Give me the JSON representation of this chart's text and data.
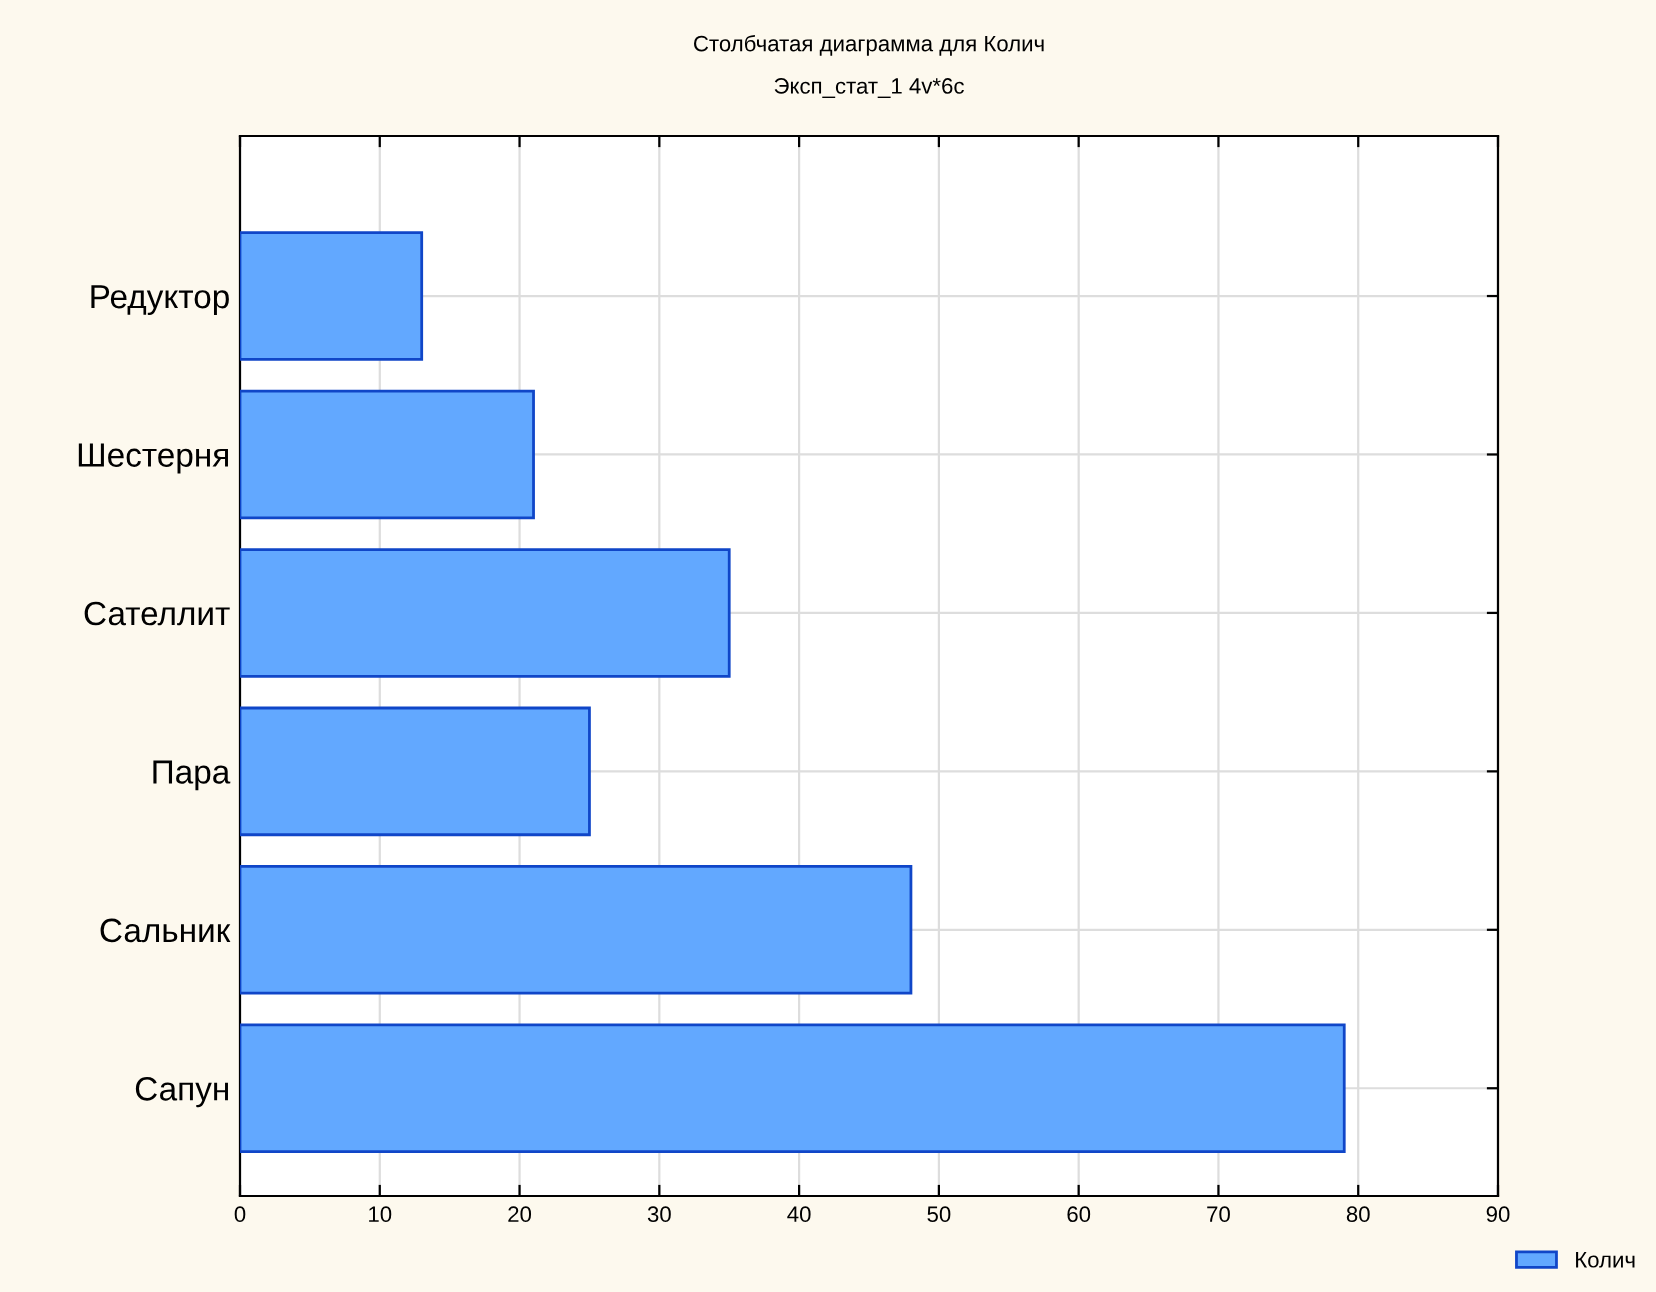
{
  "chart_data": {
    "type": "bar",
    "orientation": "horizontal",
    "title": "Столбчатая диаграмма для Колич",
    "subtitle": "Эксп_стат_1 4v*6c",
    "categories": [
      "Редуктор",
      "Шестерня",
      "Сателлит",
      "Пара",
      "Сальник",
      "Сапун"
    ],
    "series": [
      {
        "name": "Колич",
        "color": "#62a8ff",
        "values": [
          13,
          21,
          35,
          25,
          48,
          79
        ]
      }
    ],
    "xlim": [
      0,
      90
    ],
    "xticks": [
      0,
      10,
      20,
      30,
      40,
      50,
      60,
      70,
      80,
      90
    ],
    "grid": true,
    "legend": "bottom right"
  }
}
